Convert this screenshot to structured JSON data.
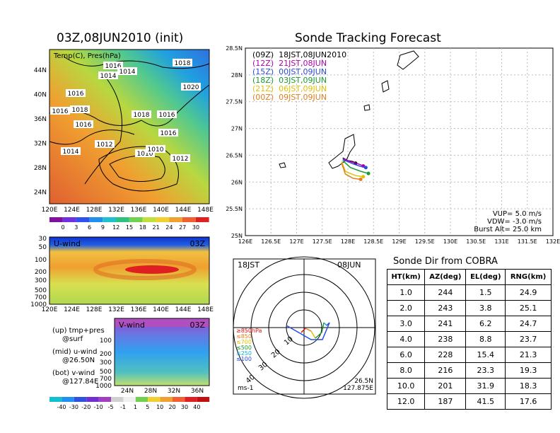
{
  "left": {
    "title": "03Z,08JUN2010 (init)",
    "map_caption": "Temp(C), Pres(hPa)",
    "lat_ticks": [
      "44N",
      "40N",
      "36N",
      "32N",
      "28N",
      "24N"
    ],
    "lon_ticks": [
      "120E",
      "124E",
      "128E",
      "132E",
      "136E",
      "140E",
      "144E",
      "148E"
    ],
    "isobars": [
      "1016",
      "1014",
      "1018",
      "1014",
      "1020",
      "1016",
      "1016",
      "1018",
      "1016",
      "1016",
      "1018",
      "1016",
      "1012",
      "1014",
      "1010",
      "1010",
      "1012"
    ],
    "temp_scale": [
      "0",
      "3",
      "6",
      "9",
      "12",
      "15",
      "18",
      "21",
      "24",
      "27",
      "30"
    ],
    "uwind_label": "U-wind",
    "uwind_time": "03Z",
    "pres_ticks": [
      "30",
      "50",
      "100",
      "200",
      "300",
      "500",
      "700",
      "1000"
    ],
    "uwind_lon_ticks": [
      "120E",
      "124E",
      "128E",
      "132E",
      "136E",
      "140E",
      "144E",
      "148E"
    ],
    "vwind_label": "V-wind",
    "vwind_time": "03Z",
    "vwind_pres_ticks": [
      "100",
      "200",
      "300",
      "500",
      "700",
      "1000"
    ],
    "vwind_lat_ticks": [
      "24N",
      "28N",
      "32N",
      "36N"
    ],
    "wind_scale": [
      "-40",
      "-30",
      "-20",
      "-10",
      "-5",
      "-1",
      "1",
      "5",
      "10",
      "20",
      "30",
      "40"
    ],
    "legend": {
      "up": "(up) tmp+pres",
      "up_sub": "@surf",
      "mid": "(mid) u-wind",
      "mid_sub": "@26.50N",
      "bot": "(bot) v-wind",
      "bot_sub": "@127.84E"
    }
  },
  "tracking": {
    "title": "Sonde Tracking Forecast",
    "lines": [
      {
        "text": "(09Z)  18JST,08JUN2010",
        "color": "#000000"
      },
      {
        "text": "(12Z)  21JST,08JUN",
        "color": "#b000b0"
      },
      {
        "text": "(15Z)  00JST,09JUN",
        "color": "#2b4ae0"
      },
      {
        "text": "(18Z)  03JST,09JUN",
        "color": "#1a9a30"
      },
      {
        "text": "(21Z)  06JST,09JUN",
        "color": "#e0c000"
      },
      {
        "text": "(00Z)  09JST,09JUN",
        "color": "#e08020"
      }
    ],
    "lat_ticks": [
      "28.5N",
      "28N",
      "27.5N",
      "27N",
      "26.5N",
      "26N",
      "25.5N",
      "25N"
    ],
    "lon_ticks": [
      "126E",
      "126.5E",
      "127E",
      "127.5E",
      "128E",
      "128.5E",
      "129E",
      "129.5E",
      "130E",
      "130.5E",
      "131E",
      "131.5E",
      "132E"
    ],
    "vup": "VUP=  5.0  m/s",
    "vdw": "VDW=  -3.0  m/s",
    "burst": "Burst Alt=  25.0  km"
  },
  "polar": {
    "time_left": "18JST",
    "date_right": "08JUN",
    "rings": [
      "10",
      "20",
      "30",
      "40"
    ],
    "levels": [
      {
        "text": "≥850hPa",
        "color": "#e01010"
      },
      {
        "text": "≤850",
        "color": "#e08020"
      },
      {
        "text": "≤700",
        "color": "#e0c000"
      },
      {
        "text": "≤500",
        "color": "#1a9a30"
      },
      {
        "text": "≤250",
        "color": "#10b0d0"
      },
      {
        "text": "≤100",
        "color": "#2b4ae0"
      }
    ],
    "unit": "ms-1",
    "lat": "26.5N",
    "lon": "127.875E"
  },
  "sonde_dir": {
    "title": "Sonde Dir from COBRA",
    "headers": [
      "HT(km)",
      "AZ(deg)",
      "EL(deg)",
      "RNG(km)"
    ],
    "rows": [
      [
        "1.0",
        "244",
        "1.5",
        "24.9"
      ],
      [
        "2.0",
        "243",
        "3.8",
        "25.1"
      ],
      [
        "3.0",
        "241",
        "6.2",
        "24.7"
      ],
      [
        "4.0",
        "238",
        "8.8",
        "23.7"
      ],
      [
        "6.0",
        "228",
        "15.4",
        "21.3"
      ],
      [
        "8.0",
        "216",
        "23.3",
        "19.3"
      ],
      [
        "10.0",
        "201",
        "31.9",
        "18.3"
      ],
      [
        "12.0",
        "187",
        "41.5",
        "17.6"
      ]
    ]
  },
  "chart_data": [
    {
      "type": "heatmap",
      "title": "03Z,08JUN2010 (init)",
      "x_ticks": [
        "120E",
        "124E",
        "128E",
        "132E",
        "136E",
        "140E",
        "144E",
        "148E"
      ],
      "y_ticks": [
        "24N",
        "28N",
        "32N",
        "36N",
        "40N",
        "44N"
      ],
      "color_scale": [
        0,
        3,
        6,
        9,
        12,
        15,
        18,
        21,
        24,
        27,
        30
      ]
    },
    {
      "type": "line",
      "title": "Sonde Tracking Forecast",
      "xlim": [
        126,
        132
      ],
      "ylim": [
        25,
        28.5
      ],
      "series": [
        {
          "name": "(09Z)  18JST,08JUN2010",
          "x": [
            127.9,
            128.0,
            128.1,
            128.15
          ],
          "y": [
            26.45,
            26.4,
            26.38,
            26.35
          ]
        },
        {
          "name": "(12Z)  21JST,08JUN",
          "x": [
            127.9,
            128.05,
            128.2,
            128.3
          ],
          "y": [
            26.44,
            26.38,
            26.34,
            26.3
          ]
        },
        {
          "name": "(15Z)  00JST,09JUN",
          "x": [
            127.9,
            128.1,
            128.25,
            128.35
          ],
          "y": [
            26.42,
            26.34,
            26.29,
            26.27
          ]
        },
        {
          "name": "(18Z)  03JST,09JUN",
          "x": [
            127.9,
            128.05,
            128.25,
            128.4
          ],
          "y": [
            26.4,
            26.27,
            26.2,
            26.16
          ]
        },
        {
          "name": "(21Z)  06JST,09JUN",
          "x": [
            127.88,
            127.95,
            128.15,
            128.3
          ],
          "y": [
            26.38,
            26.2,
            26.12,
            26.1
          ]
        },
        {
          "name": "(00Z)  09JST,09JUN",
          "x": [
            127.88,
            127.95,
            128.1,
            128.25
          ],
          "y": [
            26.35,
            26.15,
            26.07,
            26.05
          ]
        }
      ]
    },
    {
      "type": "table",
      "title": "Sonde Dir from COBRA",
      "columns": [
        "HT(km)",
        "AZ(deg)",
        "EL(deg)",
        "RNG(km)"
      ]
    }
  ]
}
